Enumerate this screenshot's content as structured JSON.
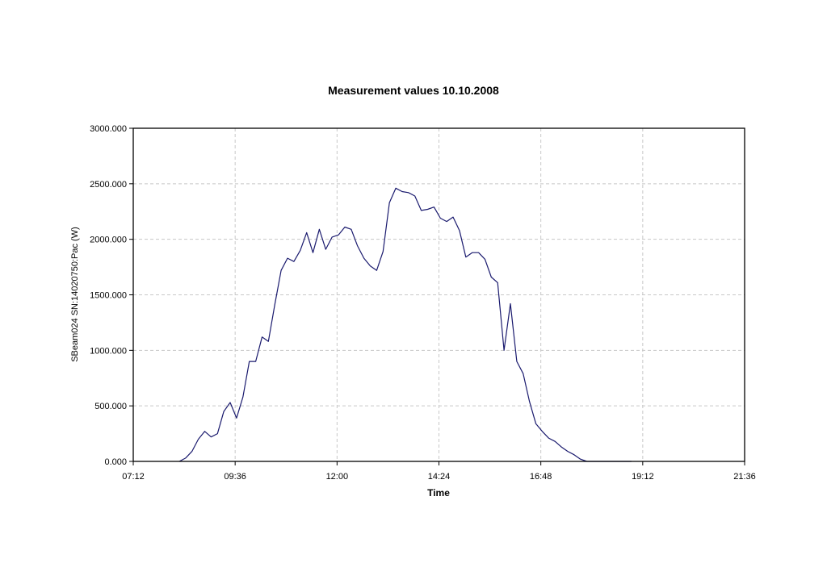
{
  "chart_data": {
    "type": "line",
    "title": "Measurement values 10.10.2008",
    "xlabel": "Time",
    "ylabel": "SBeam024 SN:14020750:Pac (W)",
    "xlim": [
      "07:12",
      "21:36"
    ],
    "ylim": [
      0,
      3000
    ],
    "x_ticks": [
      "07:12",
      "09:36",
      "12:00",
      "14:24",
      "16:48",
      "19:12",
      "21:36"
    ],
    "y_ticks": [
      "0.000",
      "500.000",
      "1000.000",
      "1500.000",
      "2000.000",
      "2500.000",
      "3000.000"
    ],
    "grid": true,
    "line_color": "#1a1a6e",
    "series": [
      {
        "x": [
          "08:17",
          "08:26",
          "08:35",
          "08:44",
          "08:53",
          "09:02",
          "09:11",
          "09:20",
          "09:29",
          "09:38",
          "09:47",
          "09:56",
          "10:05",
          "10:14",
          "10:23",
          "10:32",
          "10:41",
          "10:50",
          "10:59",
          "11:08",
          "11:17",
          "11:26",
          "11:35",
          "11:44",
          "11:53",
          "12:02",
          "12:11",
          "12:20",
          "12:29",
          "12:38",
          "12:47",
          "12:56",
          "13:05",
          "13:14",
          "13:23",
          "13:32",
          "13:41",
          "13:50",
          "13:59",
          "14:08",
          "14:17",
          "14:26",
          "14:35",
          "14:44",
          "14:53",
          "15:02",
          "15:11",
          "15:20",
          "15:29",
          "15:38",
          "15:47",
          "15:56",
          "16:05",
          "16:14",
          "16:23",
          "16:32",
          "16:41",
          "16:50",
          "16:59",
          "17:08",
          "17:17",
          "17:26",
          "17:35",
          "17:44",
          "17:53",
          "18:02",
          "18:11",
          "18:20",
          "18:29",
          "18:38",
          "18:47",
          "18:56"
        ],
        "values": [
          0,
          30,
          90,
          200,
          270,
          220,
          250,
          450,
          530,
          390,
          580,
          900,
          900,
          1120,
          1080,
          1410,
          1720,
          1830,
          1800,
          1900,
          2060,
          1880,
          2090,
          1910,
          2020,
          2040,
          2110,
          2090,
          1940,
          1830,
          1760,
          1720,
          1890,
          2330,
          2460,
          2430,
          2420,
          2390,
          2260,
          2270,
          2290,
          2190,
          2160,
          2200,
          2080,
          1840,
          1880,
          1880,
          1820,
          1660,
          1610,
          1000,
          1420,
          900,
          790,
          540,
          340,
          270,
          210,
          180,
          130,
          90,
          60,
          20,
          0,
          0,
          0,
          0,
          0,
          0,
          0,
          0
        ]
      }
    ]
  }
}
